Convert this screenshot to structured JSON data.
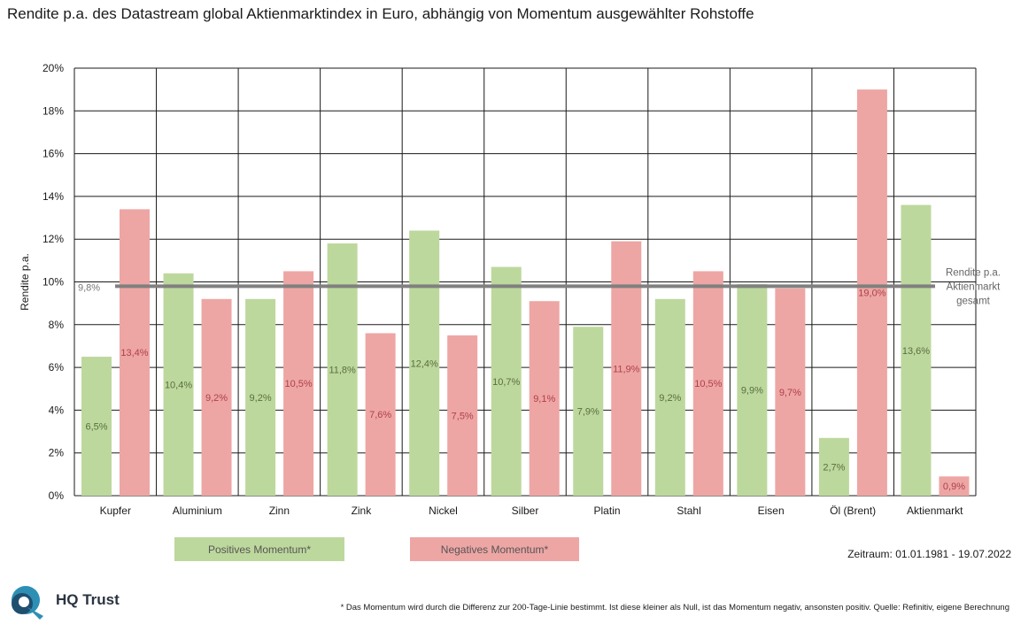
{
  "title": "Rendite p.a. des Datastream global Aktienmarktindex in Euro, abhängig von Momentum ausgewählter Rohstoffe",
  "legend": {
    "positive": "Positives Momentum*",
    "negative": "Negatives Momentum*"
  },
  "period": "Zeitraum: 01.01.1981 - 19.07.2022",
  "footnote": "* Das Momentum wird durch die Differenz zur 200-Tage-Linie bestimmt. Ist diese kleiner als Null, ist das Momentum negativ, ansonsten positiv. Quelle: Refinitiv, eigene Berechnung",
  "logo_text": "HQ Trust",
  "chart_data": {
    "type": "bar",
    "title": "Rendite p.a. des Datastream global Aktienmarktindex in Euro, abhängig von Momentum ausgewählter Rohstoffe",
    "ylabel": "Rendite p.a.",
    "xlabel": "",
    "ylim": [
      0,
      20
    ],
    "yticks": [
      "0%",
      "2%",
      "4%",
      "6%",
      "8%",
      "10%",
      "12%",
      "14%",
      "16%",
      "18%",
      "20%"
    ],
    "grid": true,
    "categories": [
      "Kupfer",
      "Aluminium",
      "Zinn",
      "Zink",
      "Nickel",
      "Silber",
      "Platin",
      "Stahl",
      "Eisen",
      "Öl (Brent)",
      "Aktienmarkt"
    ],
    "series": [
      {
        "name": "Positives Momentum*",
        "color": "#bdd89d",
        "values": [
          6.5,
          10.4,
          9.2,
          11.8,
          12.4,
          10.7,
          7.9,
          9.2,
          9.9,
          2.7,
          13.6
        ],
        "labels": [
          "6,5%",
          "10,4%",
          "9,2%",
          "11,8%",
          "12,4%",
          "10,7%",
          "7,9%",
          "9,2%",
          "9,9%",
          "2,7%",
          "13,6%"
        ]
      },
      {
        "name": "Negatives Momentum*",
        "color": "#eda6a4",
        "values": [
          13.4,
          9.2,
          10.5,
          7.6,
          7.5,
          9.1,
          11.9,
          10.5,
          9.7,
          19.0,
          0.9
        ],
        "labels": [
          "13,4%",
          "9,2%",
          "10,5%",
          "7,6%",
          "7,5%",
          "9,1%",
          "11,9%",
          "10,5%",
          "9,7%",
          "19,0%",
          "0,9%"
        ]
      }
    ],
    "reference_line": {
      "value": 9.8,
      "label": "9,8%",
      "name_lines": [
        "Rendite p.a.",
        "Aktienmarkt",
        "gesamt"
      ],
      "color": "#808080"
    },
    "pos_label_color": "#5a6e40",
    "neg_label_color": "#b0404a"
  }
}
